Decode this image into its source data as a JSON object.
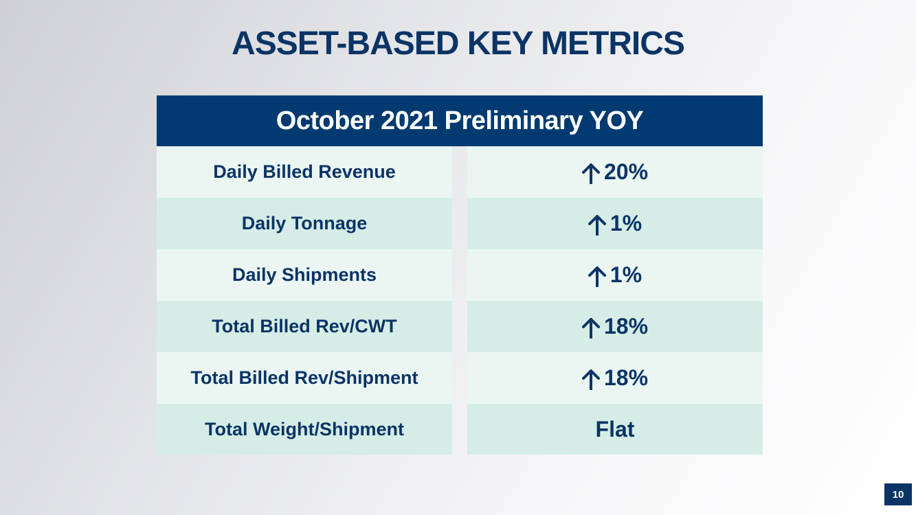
{
  "title": "ASSET-BASED KEY METRICS",
  "table": {
    "header": "October 2021 Preliminary YOY",
    "rows": [
      {
        "label": "Daily Billed Revenue",
        "direction": "up",
        "value": "20%"
      },
      {
        "label": "Daily Tonnage",
        "direction": "up",
        "value": "1%"
      },
      {
        "label": "Daily Shipments",
        "direction": "up",
        "value": "1%"
      },
      {
        "label": "Total Billed Rev/CWT",
        "direction": "up",
        "value": "18%"
      },
      {
        "label": "Total Billed Rev/Shipment",
        "direction": "up",
        "value": "18%"
      },
      {
        "label": "Total Weight/Shipment",
        "direction": "none",
        "value": "Flat"
      }
    ]
  },
  "page_number": "10",
  "colors": {
    "navy": "#0b3466",
    "header_bg": "#003a70",
    "row_light": "#ebf6f2",
    "row_dark": "#d5ede6"
  },
  "icons": {
    "up": "arrow-up-icon"
  }
}
